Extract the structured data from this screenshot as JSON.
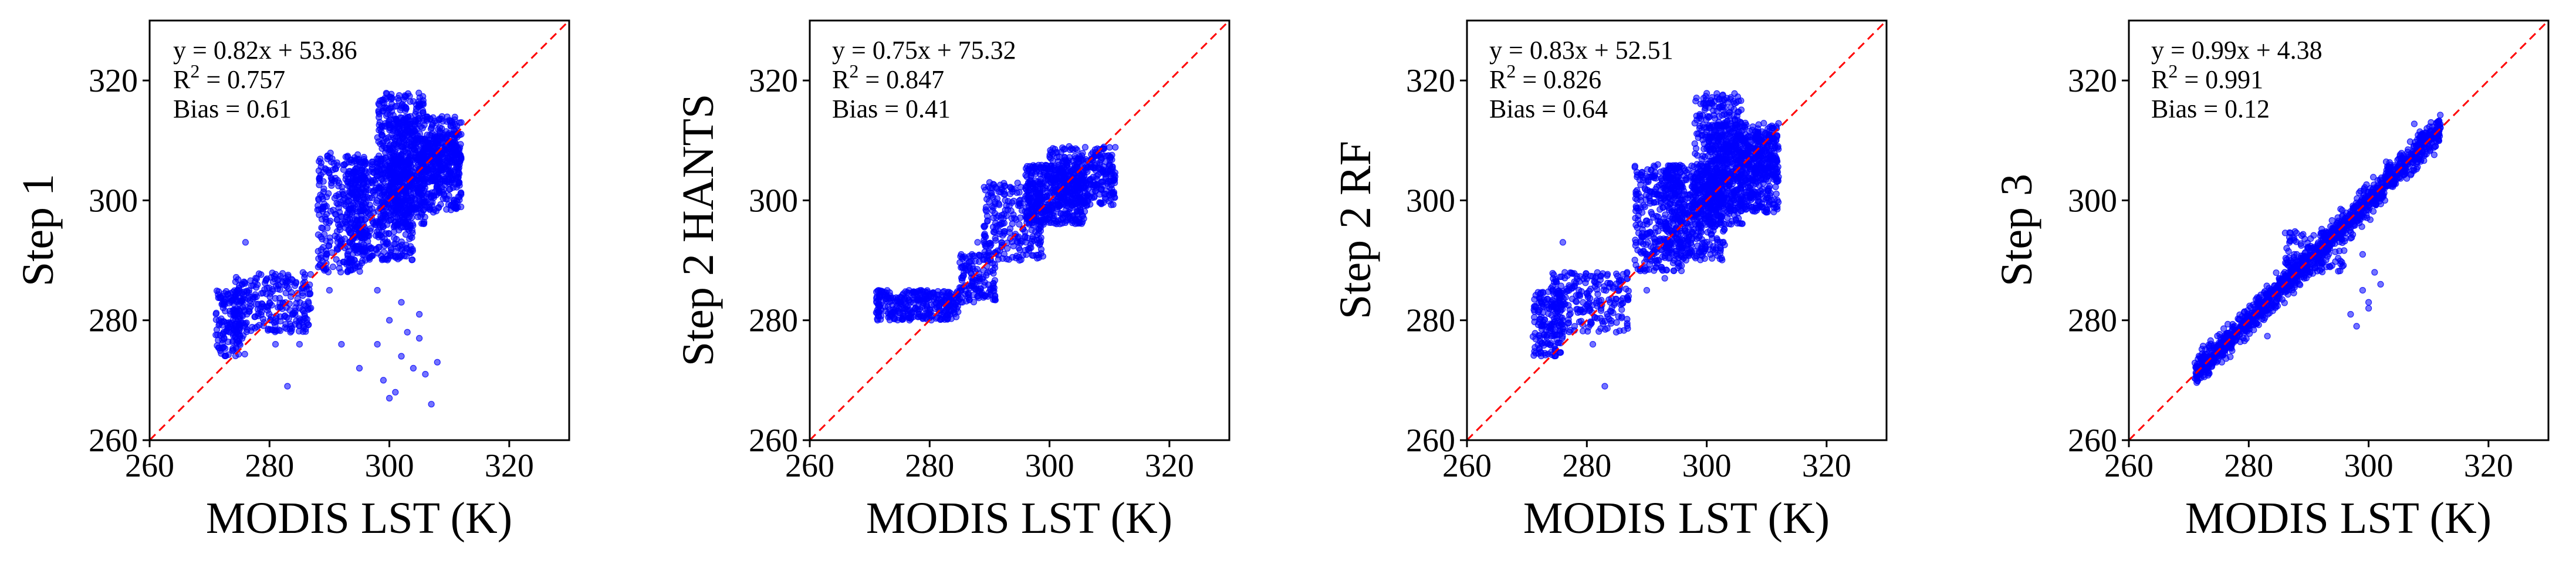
{
  "figure": {
    "xlim": [
      260,
      330
    ],
    "ylim": [
      260,
      330
    ],
    "x_ticks": [
      260,
      280,
      300,
      320
    ],
    "y_ticks": [
      260,
      280,
      300,
      320
    ],
    "identity_line_color": "#ff0000",
    "point_color": "#0000ff"
  },
  "chart_data": [
    {
      "type": "scatter",
      "xlabel": "MODIS LST (K)",
      "ylabel": "Step 1",
      "xlim": [
        260,
        330
      ],
      "ylim": [
        260,
        330
      ],
      "equation": "y = 0.82x + 53.86",
      "r2_label": "R",
      "r2_sup": "2",
      "r2_value": " = 0.757",
      "bias": "Bias = 0.61",
      "fit": {
        "slope": 0.82,
        "intercept": 53.86
      },
      "clusters": [
        {
          "x": [
            271,
            276
          ],
          "y": [
            274,
            285
          ],
          "n": 160
        },
        {
          "x": [
            274,
            287
          ],
          "y": [
            278,
            288
          ],
          "n": 260
        },
        {
          "x": [
            288,
            296
          ],
          "y": [
            288,
            308
          ],
          "n": 300
        },
        {
          "x": [
            293,
            304
          ],
          "y": [
            290,
            307
          ],
          "n": 500
        },
        {
          "x": [
            298,
            306
          ],
          "y": [
            296,
            318
          ],
          "n": 380
        },
        {
          "x": [
            300,
            312
          ],
          "y": [
            298,
            314
          ],
          "n": 520
        },
        {
          "x": [
            305,
            312
          ],
          "y": [
            303,
            311
          ],
          "n": 200
        }
      ],
      "points": [
        [
          276,
          293
        ],
        [
          285,
          276
        ],
        [
          290,
          285
        ],
        [
          292,
          276
        ],
        [
          295,
          272
        ],
        [
          296,
          290
        ],
        [
          298,
          285
        ],
        [
          299,
          270
        ],
        [
          300,
          267
        ],
        [
          301,
          268
        ],
        [
          302,
          274
        ],
        [
          303,
          278
        ],
        [
          304,
          272
        ],
        [
          305,
          277
        ],
        [
          306,
          271
        ],
        [
          307,
          266
        ],
        [
          308,
          273
        ],
        [
          300,
          280
        ],
        [
          302,
          283
        ],
        [
          298,
          276
        ],
        [
          283,
          269
        ],
        [
          281,
          276
        ],
        [
          305,
          281
        ]
      ]
    },
    {
      "type": "scatter",
      "xlabel": "MODIS LST (K)",
      "ylabel": "Step 2 HANTS",
      "xlim": [
        260,
        330
      ],
      "ylim": [
        260,
        330
      ],
      "equation": "y = 0.75x + 75.32",
      "r2_label": "R",
      "r2_sup": "2",
      "r2_value": " = 0.847",
      "bias": "Bias = 0.41",
      "fit": {
        "slope": 0.75,
        "intercept": 75.32
      },
      "clusters": [
        {
          "x": [
            271,
            285
          ],
          "y": [
            280,
            285
          ],
          "n": 320
        },
        {
          "x": [
            285,
            291
          ],
          "y": [
            283,
            291
          ],
          "n": 140
        },
        {
          "x": [
            289,
            299
          ],
          "y": [
            290,
            303
          ],
          "n": 260
        },
        {
          "x": [
            296,
            306
          ],
          "y": [
            296,
            306
          ],
          "n": 380
        },
        {
          "x": [
            300,
            311
          ],
          "y": [
            299,
            309
          ],
          "n": 360
        }
      ],
      "points": [
        [
          288,
          293
        ],
        [
          290,
          303
        ],
        [
          292,
          302
        ],
        [
          295,
          290
        ],
        [
          297,
          298
        ],
        [
          299,
          296
        ],
        [
          283,
          284
        ],
        [
          286,
          289
        ]
      ]
    },
    {
      "type": "scatter",
      "xlabel": "MODIS LST (K)",
      "ylabel": "Step 2 RF",
      "xlim": [
        260,
        330
      ],
      "ylim": [
        260,
        330
      ],
      "equation": "y = 0.83x + 52.51",
      "r2_label": "R",
      "r2_sup": "2",
      "r2_value": " = 0.826",
      "bias": "Bias = 0.64",
      "fit": {
        "slope": 0.83,
        "intercept": 52.51
      },
      "clusters": [
        {
          "x": [
            271,
            276
          ],
          "y": [
            274,
            285
          ],
          "n": 160
        },
        {
          "x": [
            274,
            287
          ],
          "y": [
            278,
            288
          ],
          "n": 240
        },
        {
          "x": [
            288,
            296
          ],
          "y": [
            288,
            306
          ],
          "n": 300
        },
        {
          "x": [
            293,
            303
          ],
          "y": [
            290,
            306
          ],
          "n": 500
        },
        {
          "x": [
            298,
            306
          ],
          "y": [
            296,
            318
          ],
          "n": 380
        },
        {
          "x": [
            300,
            312
          ],
          "y": [
            298,
            313
          ],
          "n": 520
        },
        {
          "x": [
            305,
            312
          ],
          "y": [
            303,
            311
          ],
          "n": 200
        }
      ],
      "points": [
        [
          276,
          293
        ],
        [
          283,
          269
        ],
        [
          281,
          276
        ],
        [
          290,
          285
        ],
        [
          293,
          287
        ],
        [
          295,
          291
        ],
        [
          292,
          296
        ],
        [
          289,
          300
        ]
      ]
    },
    {
      "type": "scatter",
      "xlabel": "MODIS LST (K)",
      "ylabel": "Step 3",
      "xlim": [
        260,
        330
      ],
      "ylim": [
        260,
        330
      ],
      "equation": "y = 0.99x + 4.38",
      "r2_label": "R",
      "r2_sup": "2",
      "r2_value": " = 0.991",
      "bias": "Bias = 0.12",
      "fit": {
        "slope": 0.99,
        "intercept": 4.38
      },
      "diagonal": {
        "x": [
          271,
          312
        ],
        "n": 1400,
        "spread": 1.2
      },
      "clusters": [
        {
          "x": [
            286,
            296
          ],
          "y": [
            288,
            295
          ],
          "n": 90
        }
      ],
      "points": [
        [
          297,
          281
        ],
        [
          299,
          285
        ],
        [
          300,
          282
        ],
        [
          301,
          288
        ],
        [
          298,
          279
        ],
        [
          299,
          291
        ],
        [
          300,
          283
        ],
        [
          288,
          291
        ],
        [
          287,
          290
        ],
        [
          290,
          292
        ],
        [
          302,
          286
        ],
        [
          286,
          288
        ]
      ]
    }
  ]
}
